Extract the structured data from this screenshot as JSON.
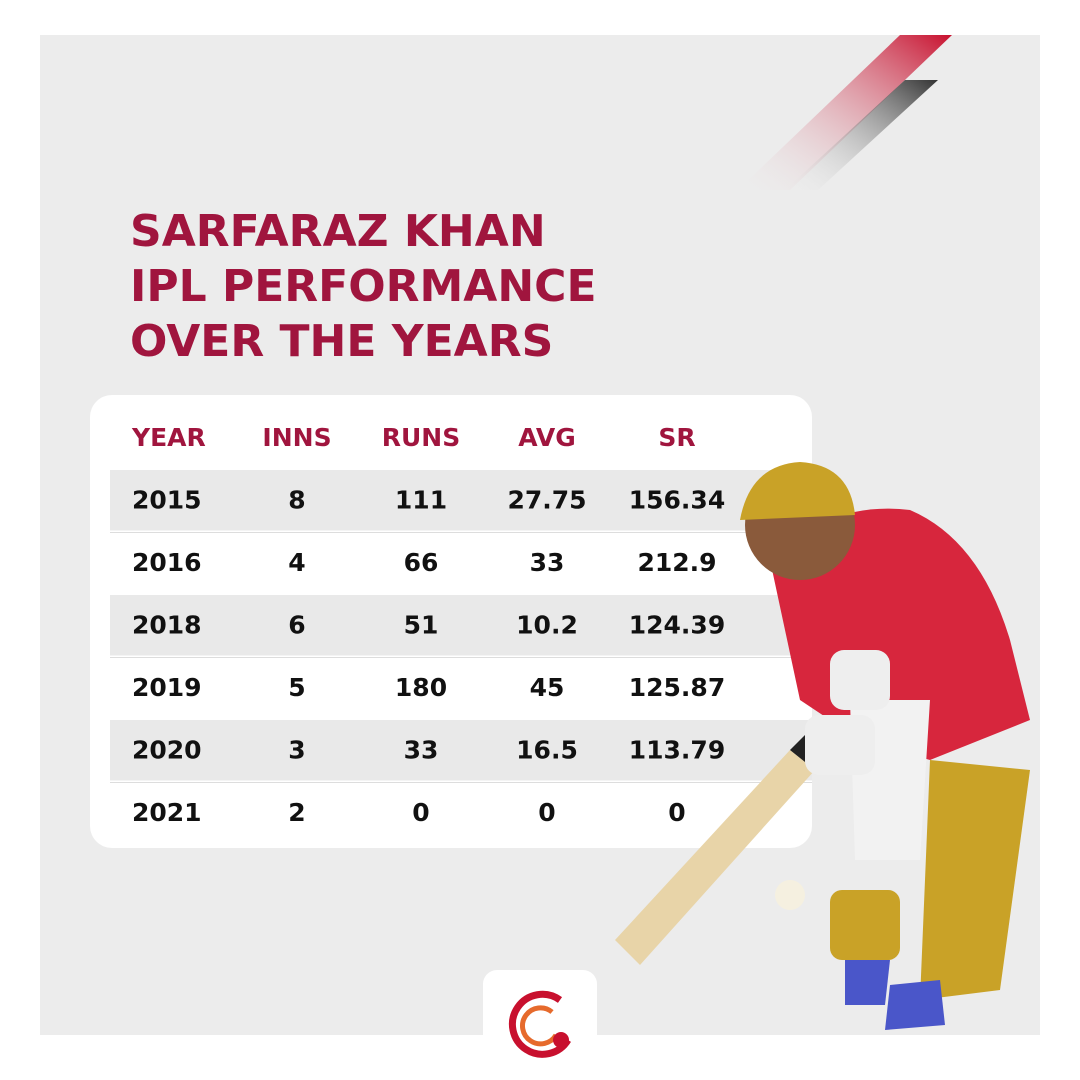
{
  "header": {
    "title_lines": [
      "SARFARAZ KHAN",
      "IPL PERFORMANCE",
      "OVER THE YEARS"
    ]
  },
  "table": {
    "columns": [
      "YEAR",
      "INNS",
      "RUNS",
      "AVG",
      "SR"
    ],
    "rows": [
      [
        "2015",
        "8",
        "111",
        "27.75",
        "156.34"
      ],
      [
        "2016",
        "4",
        "66",
        "33",
        "212.9"
      ],
      [
        "2018",
        "6",
        "51",
        "10.2",
        "124.39"
      ],
      [
        "2019",
        "5",
        "180",
        "45",
        "125.87"
      ],
      [
        "2020",
        "3",
        "33",
        "16.5",
        "113.79"
      ],
      [
        "2021",
        "2",
        "0",
        "0",
        "0"
      ]
    ]
  }
}
